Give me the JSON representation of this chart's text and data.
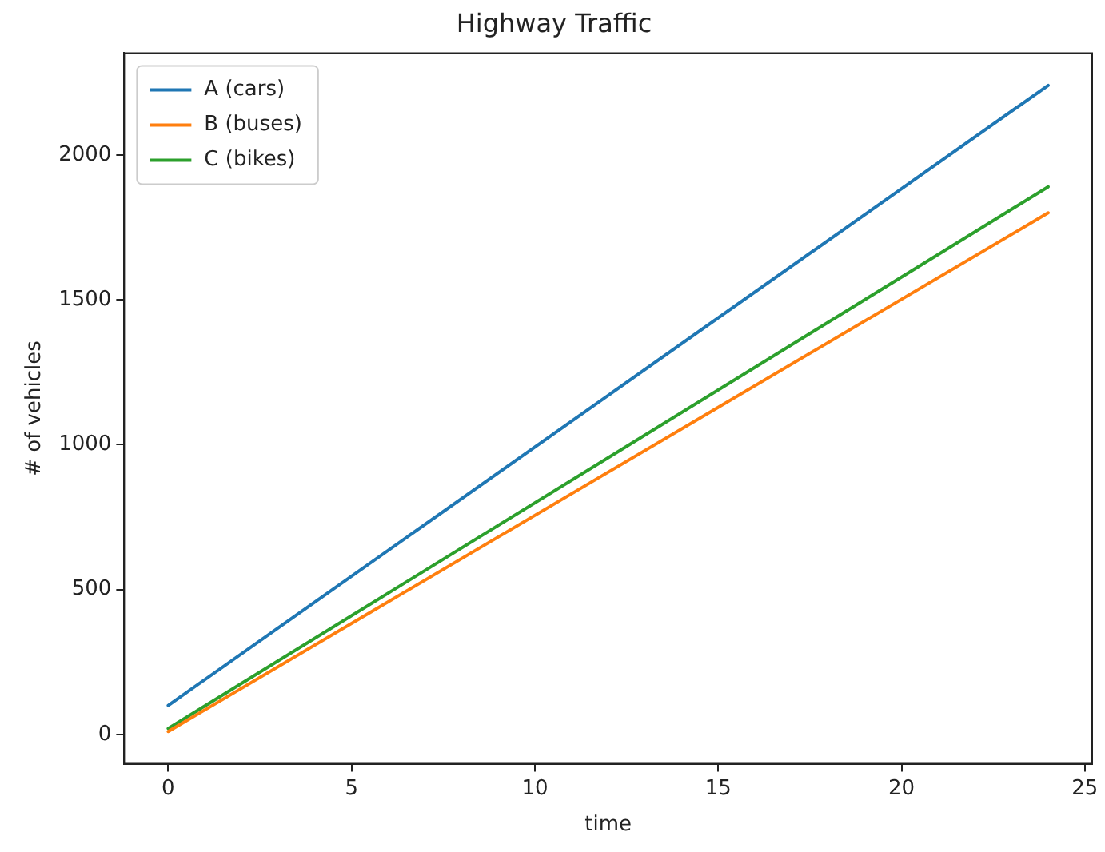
{
  "chart_data": {
    "type": "line",
    "title": "Highway Traffic",
    "xlabel": "time",
    "ylabel": "# of vehicles",
    "x": [
      0,
      24
    ],
    "series": [
      {
        "name": "A (cars)",
        "color": "#1f77b4",
        "values": [
          100,
          2240
        ]
      },
      {
        "name": "B (buses)",
        "color": "#ff7f0e",
        "values": [
          10,
          1800
        ]
      },
      {
        "name": "C (bikes)",
        "color": "#2ca02c",
        "values": [
          20,
          1890
        ]
      }
    ],
    "xlim": [
      -1.2,
      25.2
    ],
    "xticks": [
      0,
      5,
      10,
      15,
      20,
      25
    ],
    "ylim": [
      -101.5,
      2351.5
    ],
    "yticks": [
      0,
      500,
      1000,
      1500,
      2000
    ],
    "legend": "top left",
    "grid": false,
    "marker": "none",
    "line_style": "solid"
  }
}
